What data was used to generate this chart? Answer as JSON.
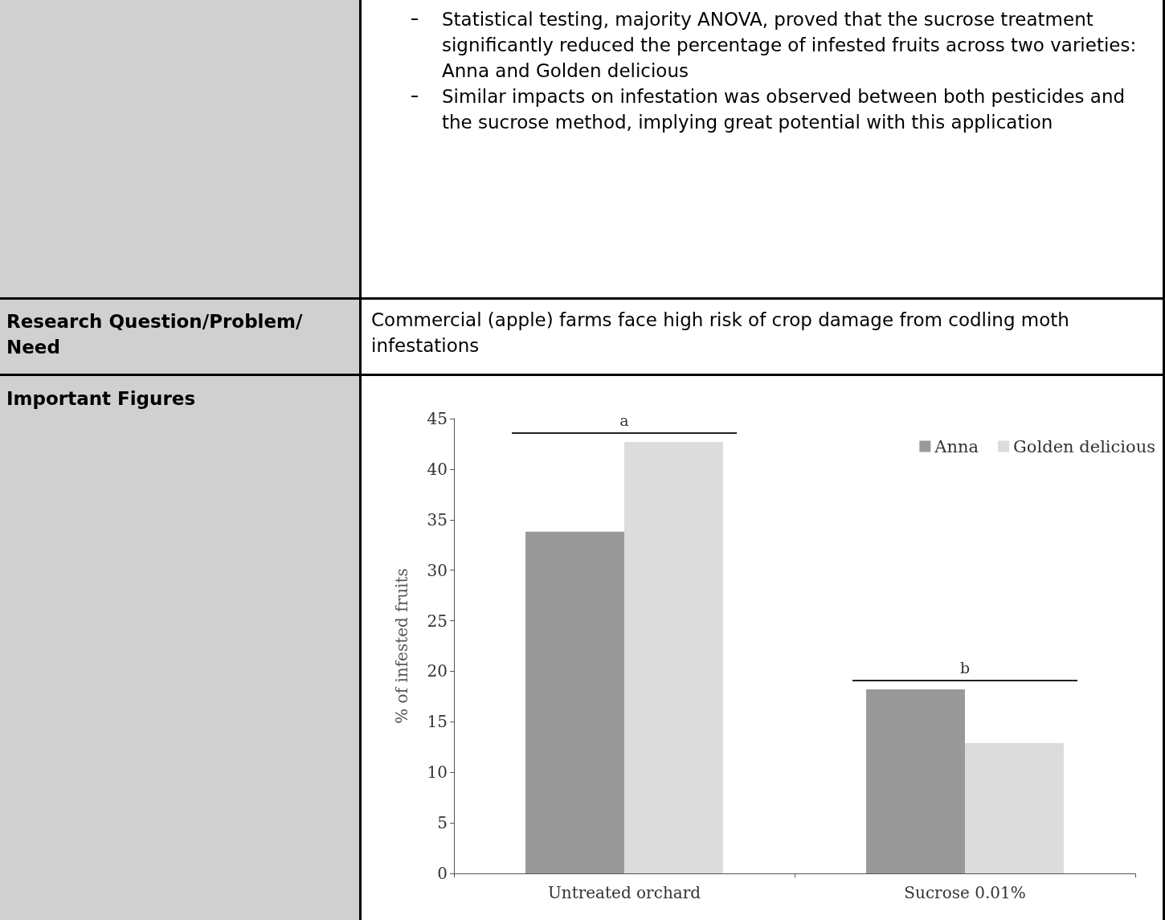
{
  "chart_data": {
    "type": "bar",
    "categories": [
      "Untreated orchard",
      "Sucrose 0.01%"
    ],
    "series": [
      {
        "name": "Anna",
        "color": "#999999",
        "values": [
          33.8,
          18.2
        ]
      },
      {
        "name": "Golden delicious",
        "color": "#dcdcdc",
        "values": [
          42.7,
          12.9
        ]
      }
    ],
    "ylabel": "% of infested fruits",
    "ylim": [
      0,
      45
    ],
    "yticks": [
      0,
      5,
      10,
      15,
      20,
      25,
      30,
      35,
      40,
      45
    ],
    "grid": false,
    "legend": "top right",
    "annotations": [
      "Statistical testing, majority ANOVA, proved that the sucrose treatment significantly reduced the percentage of infested fruits across two varieties: Anna and Golden delicious",
      "Similar impacts on infestation was observed between both pesticides and the sucrose method, implying great potential with this application",
      "Research Question/Problem/ Need",
      "Commercial (apple) farms face high risk of crop damage from codling moth infestations",
      "Important Figures",
      "a",
      "b"
    ]
  }
}
